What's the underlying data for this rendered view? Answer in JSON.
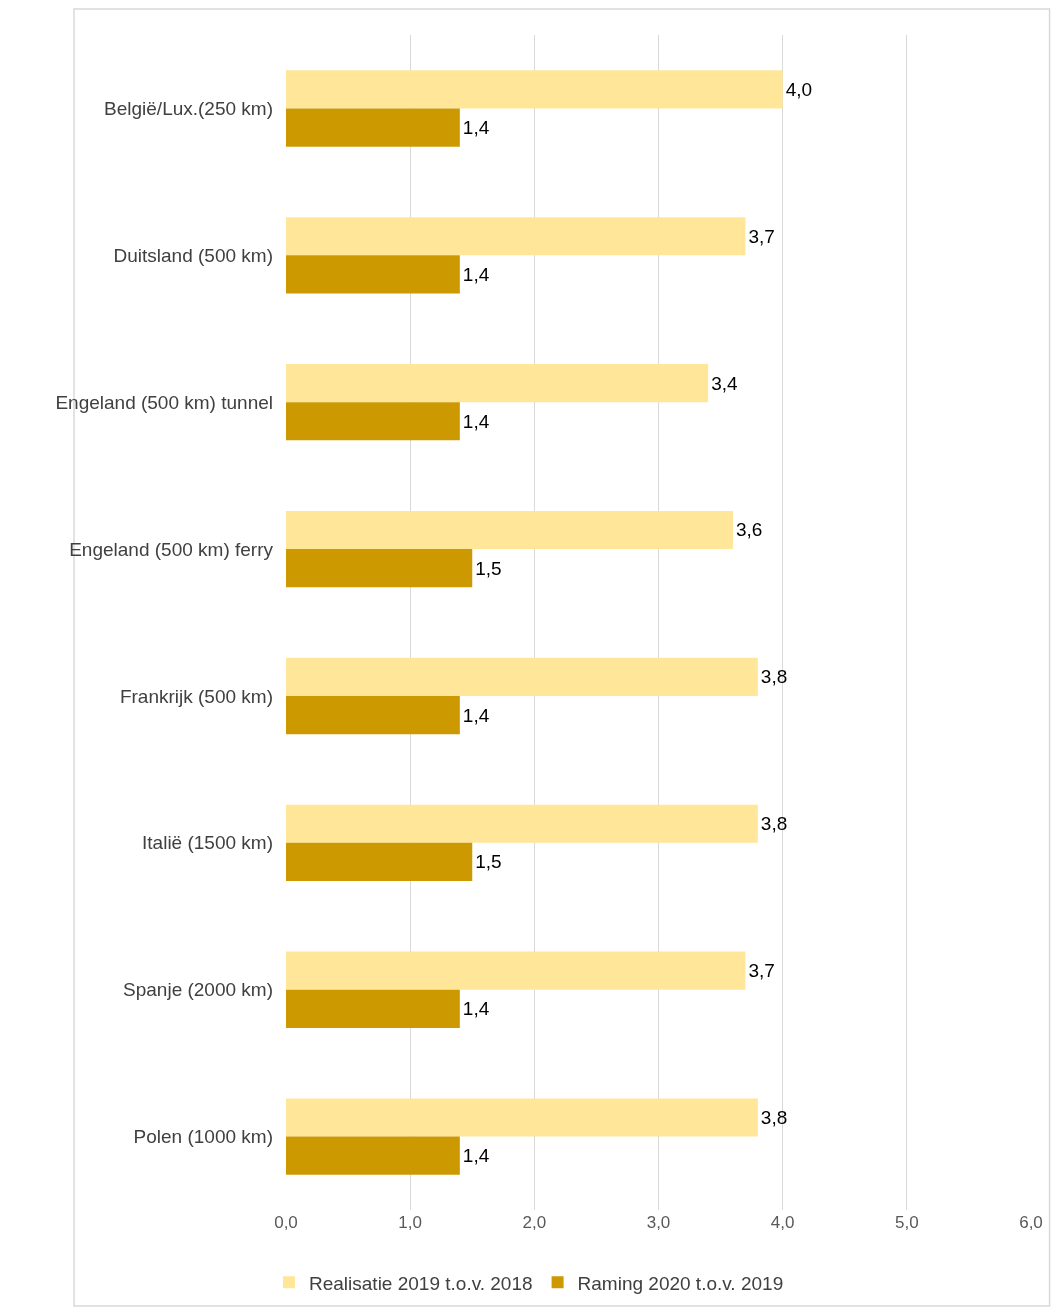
{
  "chart_data": {
    "type": "bar",
    "orientation": "horizontal",
    "categories": [
      "België/Lux.(250 km)",
      "Duitsland (500 km)",
      "Engeland (500 km) tunnel",
      "Engeland (500 km) ferry",
      "Frankrijk (500 km)",
      "Italië (1500 km)",
      "Spanje (2000 km)",
      "Polen (1000 km)"
    ],
    "series": [
      {
        "name": "Realisatie 2019 t.o.v. 2018",
        "color": "#ffe699",
        "values": [
          4.0,
          3.7,
          3.4,
          3.6,
          3.8,
          3.8,
          3.7,
          3.8
        ],
        "value_labels": [
          "4,0",
          "3,7",
          "3,4",
          "3,6",
          "3,8",
          "3,8",
          "3,7",
          "3,8"
        ]
      },
      {
        "name": "Raming 2020 t.o.v. 2019",
        "color": "#cc9900",
        "values": [
          1.4,
          1.4,
          1.4,
          1.5,
          1.4,
          1.5,
          1.4,
          1.4
        ],
        "value_labels": [
          "1,4",
          "1,4",
          "1,4",
          "1,5",
          "1,4",
          "1,5",
          "1,4",
          "1,4"
        ]
      }
    ],
    "xlim": [
      0,
      6
    ],
    "xticks": [
      {
        "value": 0,
        "label": "0,0"
      },
      {
        "value": 1,
        "label": "1,0"
      },
      {
        "value": 2,
        "label": "2,0"
      },
      {
        "value": 3,
        "label": "3,0"
      },
      {
        "value": 4,
        "label": "4,0"
      },
      {
        "value": 5,
        "label": "5,0"
      },
      {
        "value": 6,
        "label": "6,0"
      }
    ],
    "grid": "x",
    "legend": "bottom"
  }
}
